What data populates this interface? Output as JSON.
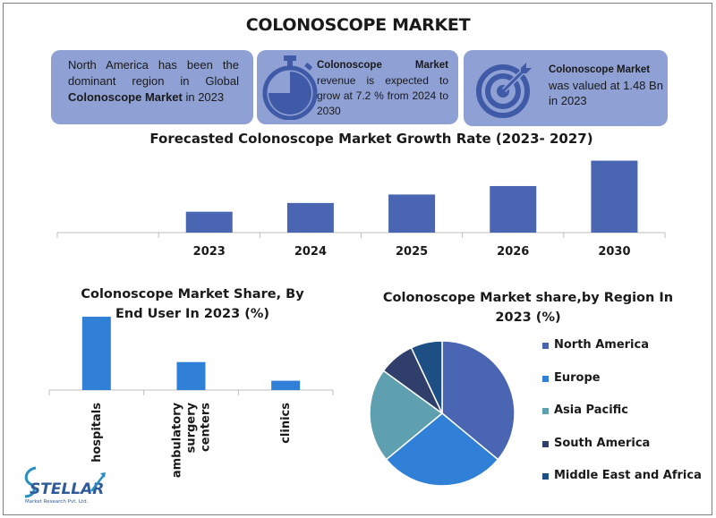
{
  "title": "COLONOSCOPE MARKET",
  "cards": {
    "card1": {
      "pre": "North America has been the dominant region in Global ",
      "bold": "Colonoscope Market",
      "post": " in 2023"
    },
    "card2": {
      "bold": "Colonoscope Market",
      "post": " revenue is expected to grow at 7.2 % from 2024 to 2030",
      "icon": "stopwatch-icon"
    },
    "card3": {
      "bold": "Colonoscope Market",
      "post": " was valued at 1.48 Bn in 2023",
      "icon": "target-icon"
    }
  },
  "colors": {
    "card_bg": "#8fa0d4",
    "bar_dark": "#4a66b3",
    "bar_light": "#2f80d6",
    "pie": [
      "#4a66b3",
      "#2f80d6",
      "#5e9fb0",
      "#2f3e6b",
      "#1d4f85"
    ]
  },
  "chart_data": [
    {
      "type": "bar",
      "title": "Forecasted Colonoscope Market Growth Rate (2023- 2027)",
      "categories": [
        "",
        "2023",
        "2024",
        "2025",
        "2026",
        "2030"
      ],
      "values": [
        0,
        1.48,
        2.1,
        2.7,
        3.3,
        5.1
      ],
      "ylim": [
        0,
        5.2
      ]
    },
    {
      "type": "bar",
      "title": "Colonoscope Market Share, By End User In 2023 (%)",
      "categories": [
        "hospitals",
        "ambulatory surgery centers",
        "clinics"
      ],
      "values": [
        55,
        21,
        7
      ],
      "ylim": [
        0,
        55
      ]
    },
    {
      "type": "pie",
      "title": "Colonoscope Market share,by Region In 2023 (%)",
      "categories": [
        "North America",
        "Europe",
        "Asia Pacific",
        "South America",
        "Middle East and Africa"
      ],
      "values": [
        36,
        28,
        21,
        8,
        7
      ]
    }
  ],
  "logo": {
    "name": "STELLAR",
    "tagline": "Market Research Pvt. Ltd."
  }
}
